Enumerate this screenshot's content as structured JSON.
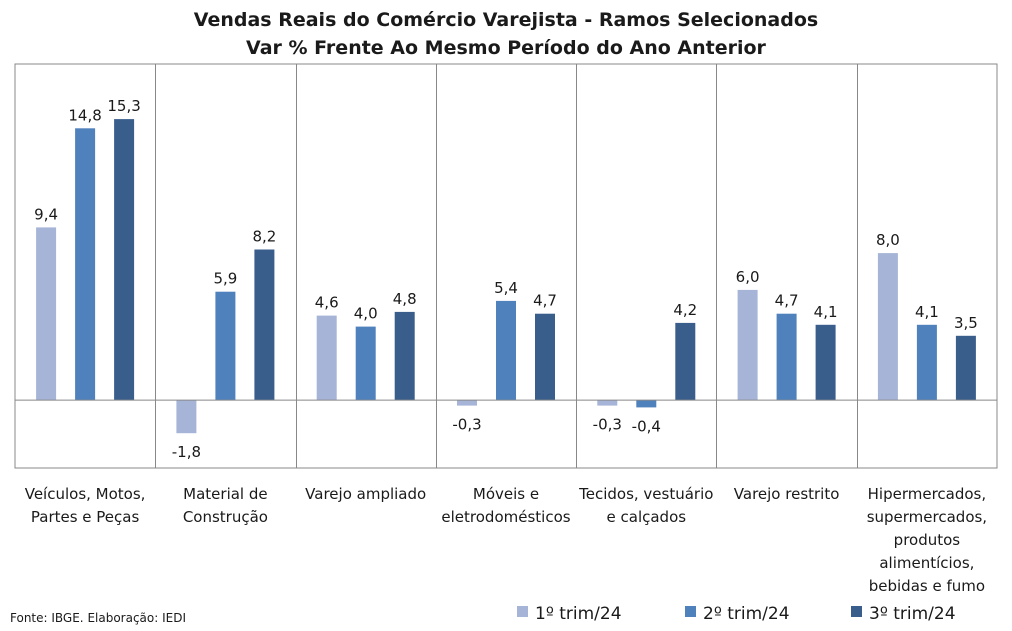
{
  "chart_data": {
    "type": "bar",
    "title_lines": [
      "Vendas Reais do Comércio Varejista - Ramos Selecionados",
      "Var % Frente Ao Mesmo Período do Ano Anterior"
    ],
    "categories": [
      [
        "Veículos, Motos,",
        "Partes e Peças"
      ],
      [
        "Material de",
        "Construção"
      ],
      [
        "Varejo ampliado"
      ],
      [
        "Móveis e",
        "eletrodomésticos"
      ],
      [
        "Tecidos, vestuário",
        "e calçados"
      ],
      [
        "Varejo restrito"
      ],
      [
        "Hipermercados,",
        "supermercados,",
        "produtos",
        "alimentícios,",
        "bebidas e fumo"
      ]
    ],
    "series": [
      {
        "name": "1º trim/24",
        "color": "#a6b5d7",
        "values": [
          9.4,
          -1.8,
          4.6,
          -0.3,
          -0.3,
          6.0,
          8.0
        ],
        "labels": [
          "9,4",
          "-1,8",
          "4,6",
          "-0,3",
          "-0,3",
          "6,0",
          "8,0"
        ]
      },
      {
        "name": "2º trim/24",
        "color": "#4f81bd",
        "values": [
          14.8,
          5.9,
          4.0,
          5.4,
          -0.4,
          4.7,
          4.1
        ],
        "labels": [
          "14,8",
          "5,9",
          "4,0",
          "5,4",
          "-0,4",
          "4,7",
          "4,1"
        ]
      },
      {
        "name": "3º trim/24",
        "color": "#3a5e8c",
        "values": [
          15.3,
          8.2,
          4.8,
          4.7,
          4.2,
          4.1,
          3.5
        ],
        "labels": [
          "15,3",
          "8,2",
          "4,8",
          "4,7",
          "4,2",
          "4,1",
          "3,5"
        ]
      }
    ],
    "ylim": [
      -3.7,
      18.3
    ],
    "grid": false,
    "legend_position": "bottom-right",
    "source": "Fonte: IBGE. Elaboração: IEDI"
  }
}
